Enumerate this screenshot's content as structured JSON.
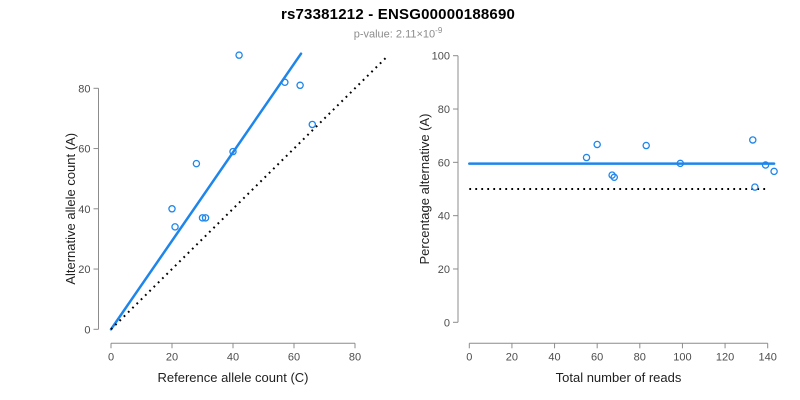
{
  "header": {
    "title": "rs73381212 - ENSG00000188690",
    "pvalue_prefix": "p-value: 2.11×10",
    "pvalue_exponent": "-9"
  },
  "colors": {
    "accent_blue": "#1e86eb",
    "dotted_line": "#000000",
    "axis_line": "#8c8c8c",
    "tick_label": "#4d4d4d",
    "axis_title": "#1f1f1f",
    "title": "#000000",
    "subtitle": "#8c8c8c",
    "background": "#ffffff"
  },
  "chart_data": [
    {
      "type": "scatter",
      "panel": "left",
      "xlabel": "Reference allele count (C)",
      "ylabel": "Alternative allele count (A)",
      "xticks": [
        0,
        20,
        40,
        60,
        80
      ],
      "yticks": [
        0,
        20,
        40,
        60,
        80
      ],
      "xlim": [
        0,
        92
      ],
      "ylim": [
        0,
        92
      ],
      "grid": false,
      "legend": false,
      "points": [
        [
          20,
          40
        ],
        [
          21,
          34
        ],
        [
          28,
          55
        ],
        [
          30,
          37
        ],
        [
          31,
          37
        ],
        [
          40,
          59
        ],
        [
          42,
          91
        ],
        [
          57,
          82
        ],
        [
          62,
          81
        ],
        [
          66,
          68
        ]
      ],
      "lines": [
        {
          "name": "regression-line",
          "style": "solid",
          "from": [
            0,
            0
          ],
          "to": [
            62.3,
            91.5
          ]
        },
        {
          "name": "identity-line",
          "style": "dotted",
          "from": [
            0,
            0
          ],
          "to": [
            90.5,
            90.5
          ]
        }
      ]
    },
    {
      "type": "scatter",
      "panel": "right",
      "xlabel": "Total number of reads",
      "ylabel": "Percentage alternative (A)",
      "xticks": [
        0,
        20,
        40,
        60,
        80,
        100,
        120,
        140
      ],
      "yticks": [
        0,
        20,
        40,
        60,
        80,
        100
      ],
      "xlim": [
        0,
        143
      ],
      "ylim": [
        0,
        100
      ],
      "grid": false,
      "legend": false,
      "points": [
        [
          55,
          61.8
        ],
        [
          60,
          66.7
        ],
        [
          67,
          55.2
        ],
        [
          68,
          54.4
        ],
        [
          83,
          66.3
        ],
        [
          99,
          59.6
        ],
        [
          133,
          68.4
        ],
        [
          134,
          50.7
        ],
        [
          139,
          59.0
        ],
        [
          143,
          56.6
        ]
      ],
      "lines": [
        {
          "name": "mean-percentage-line",
          "style": "solid",
          "from": [
            0,
            59.5
          ],
          "to": [
            143,
            59.5
          ]
        },
        {
          "name": "fifty-percent-line",
          "style": "dotted",
          "from": [
            0,
            50
          ],
          "to": [
            140,
            50
          ]
        }
      ]
    }
  ]
}
